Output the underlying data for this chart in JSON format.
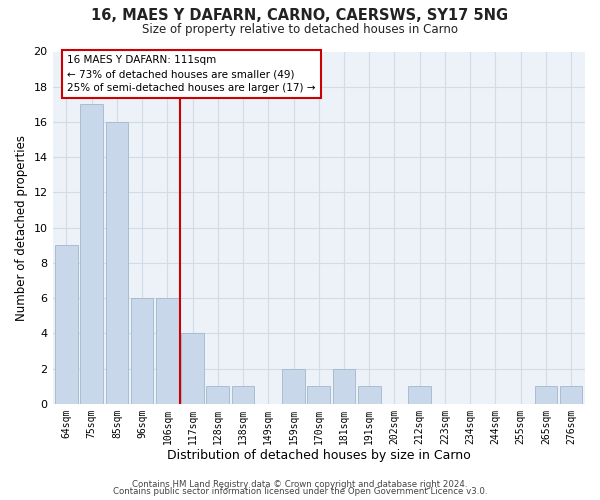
{
  "title": "16, MAES Y DAFARN, CARNO, CAERSWS, SY17 5NG",
  "subtitle": "Size of property relative to detached houses in Carno",
  "xlabel": "Distribution of detached houses by size in Carno",
  "ylabel": "Number of detached properties",
  "bar_labels": [
    "64sqm",
    "75sqm",
    "85sqm",
    "96sqm",
    "106sqm",
    "117sqm",
    "128sqm",
    "138sqm",
    "149sqm",
    "159sqm",
    "170sqm",
    "181sqm",
    "191sqm",
    "202sqm",
    "212sqm",
    "223sqm",
    "234sqm",
    "244sqm",
    "255sqm",
    "265sqm",
    "276sqm"
  ],
  "bar_values": [
    9,
    17,
    16,
    6,
    6,
    4,
    1,
    1,
    0,
    2,
    1,
    2,
    1,
    0,
    1,
    0,
    0,
    0,
    0,
    1,
    1
  ],
  "bar_color": "#c8d8ea",
  "bar_edge_color": "#a0b8cc",
  "property_line_x": 4.5,
  "annotation_title": "16 MAES Y DAFARN: 111sqm",
  "annotation_line1": "← 73% of detached houses are smaller (49)",
  "annotation_line2": "25% of semi-detached houses are larger (17) →",
  "annotation_box_facecolor": "#ffffff",
  "annotation_box_edgecolor": "#cc0000",
  "property_line_color": "#cc0000",
  "ylim": [
    0,
    20
  ],
  "yticks": [
    0,
    2,
    4,
    6,
    8,
    10,
    12,
    14,
    16,
    18,
    20
  ],
  "footer1": "Contains HM Land Registry data © Crown copyright and database right 2024.",
  "footer2": "Contains public sector information licensed under the Open Government Licence v3.0.",
  "grid_color": "#d0dce8",
  "figure_facecolor": "#ffffff",
  "axes_facecolor": "#edf2f8"
}
